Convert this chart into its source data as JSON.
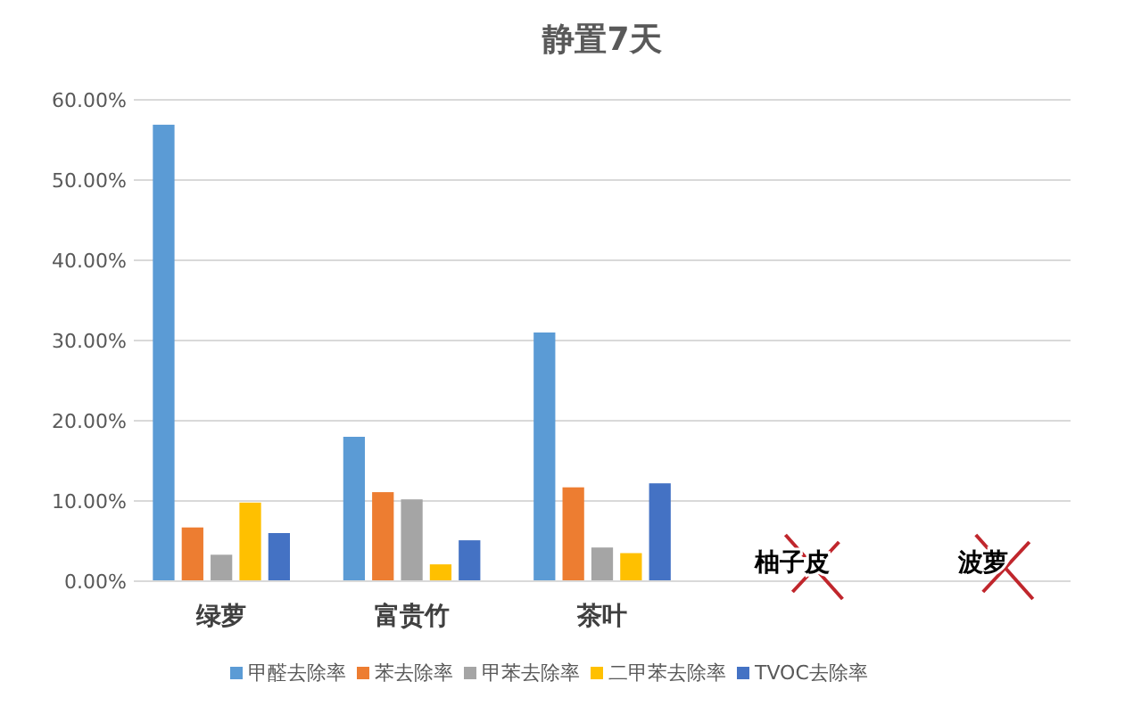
{
  "chart_data": {
    "type": "bar",
    "title": "静置7天",
    "categories": [
      "绿萝",
      "富贵竹",
      "茶叶",
      "柚子皮",
      "波萝"
    ],
    "series": [
      {
        "name": "甲醛去除率",
        "color": "#5b9bd5",
        "values": [
          56.9,
          18.0,
          31.0,
          null,
          null
        ]
      },
      {
        "name": "苯去除率",
        "color": "#ed7d31",
        "values": [
          6.7,
          11.1,
          11.7,
          null,
          null
        ]
      },
      {
        "name": "甲苯去除率",
        "color": "#a5a5a5",
        "values": [
          3.3,
          10.2,
          4.2,
          null,
          null
        ]
      },
      {
        "name": "二甲苯去除率",
        "color": "#ffc000",
        "values": [
          9.8,
          2.1,
          3.5,
          null,
          null
        ]
      },
      {
        "name": "TVOC去除率",
        "color": "#4472c4",
        "values": [
          6.0,
          5.1,
          12.2,
          null,
          null
        ]
      }
    ],
    "ylim": [
      0,
      60
    ],
    "yticks": [
      {
        "value": 0,
        "label": "0.00%"
      },
      {
        "value": 10,
        "label": "10.00%"
      },
      {
        "value": 20,
        "label": "20.00%"
      },
      {
        "value": 30,
        "label": "30.00%"
      },
      {
        "value": 40,
        "label": "40.00%"
      },
      {
        "value": 50,
        "label": "50.00%"
      },
      {
        "value": 60,
        "label": "60.00%"
      }
    ],
    "grid": "y",
    "legend": "bottom"
  }
}
